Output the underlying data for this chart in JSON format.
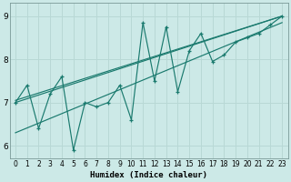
{
  "title": "",
  "xlabel": "Humidex (Indice chaleur)",
  "ylabel": "",
  "bg_color": "#cce9e7",
  "line_color": "#1a7a6e",
  "grid_color": "#b8d8d5",
  "xlim": [
    -0.5,
    23.5
  ],
  "ylim": [
    5.7,
    9.3
  ],
  "yticks": [
    6,
    7,
    8,
    9
  ],
  "xticks": [
    0,
    1,
    2,
    3,
    4,
    5,
    6,
    7,
    8,
    9,
    10,
    11,
    12,
    13,
    14,
    15,
    16,
    17,
    18,
    19,
    20,
    21,
    22,
    23
  ],
  "series": [
    [
      0,
      7.0
    ],
    [
      1,
      7.4
    ],
    [
      2,
      6.4
    ],
    [
      3,
      7.2
    ],
    [
      4,
      7.6
    ],
    [
      5,
      5.9
    ],
    [
      6,
      7.0
    ],
    [
      7,
      6.9
    ],
    [
      8,
      7.0
    ],
    [
      9,
      7.4
    ],
    [
      10,
      6.6
    ],
    [
      11,
      8.85
    ],
    [
      12,
      7.5
    ],
    [
      13,
      8.75
    ],
    [
      14,
      7.25
    ],
    [
      15,
      8.2
    ],
    [
      16,
      8.6
    ],
    [
      17,
      7.95
    ],
    [
      18,
      8.1
    ],
    [
      19,
      8.4
    ],
    [
      20,
      8.5
    ],
    [
      21,
      8.6
    ],
    [
      22,
      8.8
    ],
    [
      23,
      9.0
    ]
  ],
  "trend_lines": [
    {
      "x0": 0,
      "y0": 7.0,
      "x1": 23,
      "y1": 9.0
    },
    {
      "x0": 0,
      "y0": 6.3,
      "x1": 23,
      "y1": 8.85
    },
    {
      "x0": 0,
      "y0": 7.05,
      "x1": 23,
      "y1": 9.0
    }
  ],
  "xlabel_fontsize": 6.5,
  "tick_fontsize_x": 5.5,
  "tick_fontsize_y": 6.5
}
